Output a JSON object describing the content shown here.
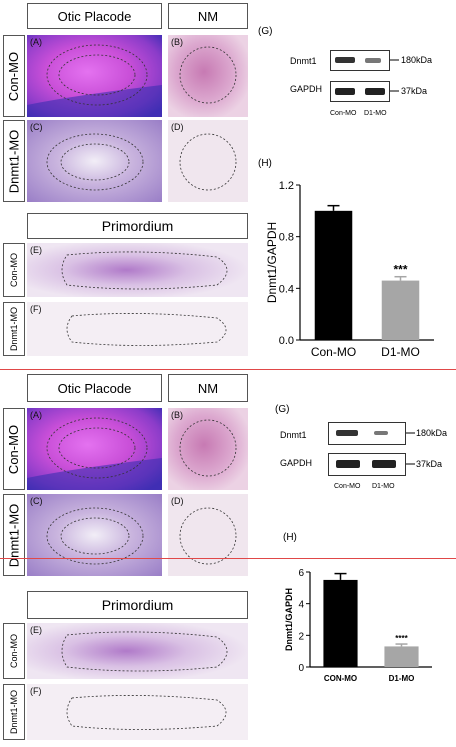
{
  "figure_top": {
    "col_headers": {
      "otic": "Otic Placode",
      "nm": "NM"
    },
    "row_labels": {
      "con": "Con-MO",
      "dnmt": "Dnmt1-MO"
    },
    "panel_labels": {
      "a": "(A)",
      "b": "(B)",
      "c": "(C)",
      "d": "(D)",
      "e": "(E)",
      "f": "(F)",
      "g": "(G)",
      "h": "(H)"
    },
    "primordium_header": "Primordium",
    "blot": {
      "band1": "Dnmt1",
      "band2": "GAPDH",
      "kda1": "180kDa",
      "kda2": "37kDa",
      "lane1": "Con-MO",
      "lane2": "D1-MO"
    },
    "colors": {
      "con_bar": "#000000",
      "d1_bar": "#a6a6a6",
      "divider": "#e04848"
    }
  },
  "figure_bottom": {
    "col_headers": {
      "otic": "Otic Placode",
      "nm": "NM"
    },
    "row_labels": {
      "con": "Con-MO",
      "dnmt": "Dnmt1-MO"
    },
    "panel_labels": {
      "a": "(A)",
      "b": "(B)",
      "c": "(C)",
      "d": "(D)",
      "e": "(E)",
      "f": "(F)",
      "g": "(G)",
      "h": "(H)"
    },
    "primordium_header": "Primordium",
    "blot": {
      "band1": "Dnmt1",
      "band2": "GAPDH",
      "kda1": "180kDa",
      "kda2": "37kDa",
      "lane1": "Con-MO",
      "lane2": "D1-MO"
    }
  },
  "chart_data": [
    {
      "type": "bar",
      "categories": [
        "Con-MO",
        "D1-MO"
      ],
      "values": [
        1.0,
        0.46
      ],
      "errors": [
        0.04,
        0.03
      ],
      "ylabel": "Dnmt1/GAPDH",
      "ylim": [
        0,
        1.2
      ],
      "yticks": [
        "0.0",
        "0.4",
        "0.8",
        "1.2"
      ],
      "annotation": "***"
    },
    {
      "type": "bar",
      "categories": [
        "CON-MO",
        "D1-MO"
      ],
      "values": [
        5.5,
        1.3
      ],
      "errors": [
        0.4,
        0.15
      ],
      "ylabel": "Dnmt1/GAPDH",
      "ylim": [
        0,
        6
      ],
      "yticks": [
        "0",
        "2",
        "4",
        "6"
      ],
      "annotation": "****"
    }
  ]
}
